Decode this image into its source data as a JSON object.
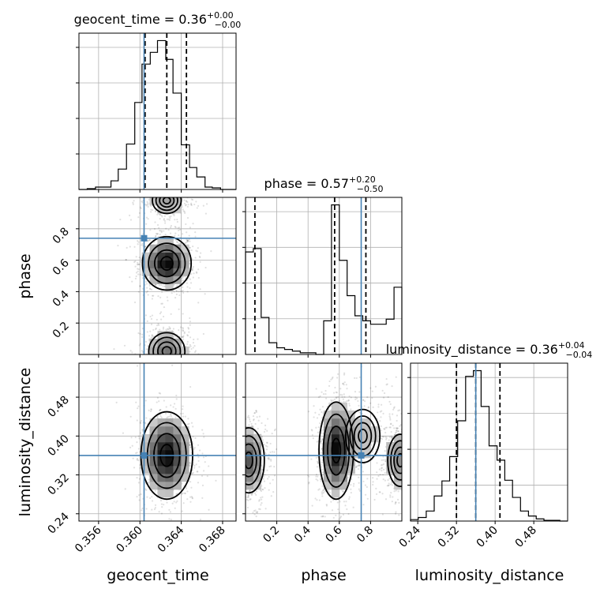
{
  "chart_data": {
    "type": "corner",
    "parameters": [
      "geocent_time",
      "phase",
      "luminosity_distance"
    ],
    "truth_color": "#4682b4",
    "truths": {
      "geocent_time": 0.3604,
      "phase": 0.74,
      "luminosity_distance": 0.36
    },
    "titles": {
      "geocent_time": {
        "name": "geocent_time",
        "value": "0.36",
        "plus": "+0.00",
        "minus": "−0.00"
      },
      "phase": {
        "name": "phase",
        "value": "0.57",
        "plus": "+0.20",
        "minus": "−0.50"
      },
      "luminosity_distance": {
        "name": "luminosity_distance",
        "value": "0.36",
        "plus": "+0.04",
        "minus": "−0.04"
      }
    },
    "axis_labels": {
      "geocent_time": "geocent_time",
      "phase": "phase",
      "luminosity_distance": "luminosity_distance"
    },
    "ranges": {
      "geocent_time": [
        0.3541,
        0.3693
      ],
      "phase": [
        0.0,
        1.0
      ],
      "luminosity_distance": [
        0.225,
        0.55
      ]
    },
    "ticks": {
      "geocent_time": {
        "values": [
          0.356,
          0.36,
          0.364,
          0.368
        ],
        "labels": [
          "0.356",
          "0.360",
          "0.364",
          "0.368"
        ]
      },
      "phase": {
        "values": [
          0.2,
          0.4,
          0.6,
          0.8
        ],
        "labels": [
          "0.2",
          "0.4",
          "0.6",
          "0.8"
        ]
      },
      "luminosity_distance": {
        "values": [
          0.24,
          0.32,
          0.4,
          0.48
        ],
        "labels": [
          "0.24",
          "0.32",
          "0.40",
          "0.48"
        ]
      }
    },
    "quantiles": {
      "geocent_time": [
        0.3605,
        0.3626,
        0.3645
      ],
      "phase": [
        0.06,
        0.57,
        0.77
      ],
      "luminosity_distance": [
        0.32,
        0.36,
        0.41
      ]
    },
    "histograms": {
      "geocent_time": {
        "edges": [
          0.3541,
          0.3549,
          0.3557,
          0.3564,
          0.3572,
          0.3579,
          0.3587,
          0.3595,
          0.3602,
          0.361,
          0.3617,
          0.3625,
          0.3632,
          0.364,
          0.3648,
          0.3655,
          0.3663,
          0.367,
          0.3678,
          0.3685,
          0.3693
        ],
        "counts": [
          0,
          1,
          3,
          3,
          11,
          26,
          58,
          111,
          160,
          175,
          190,
          166,
          123,
          57,
          28,
          16,
          3,
          2,
          0,
          0
        ]
      },
      "phase": {
        "edges": [
          0.0,
          0.05,
          0.1,
          0.15,
          0.2,
          0.25,
          0.3,
          0.35,
          0.4,
          0.45,
          0.5,
          0.55,
          0.6,
          0.65,
          0.7,
          0.75,
          0.8,
          0.85,
          0.9,
          0.95,
          1.0
        ],
        "counts": [
          61,
          63,
          22,
          7,
          4,
          3,
          2,
          1,
          1,
          0,
          20,
          89,
          56,
          35,
          23,
          20,
          18,
          18,
          21,
          40
        ]
      },
      "luminosity_distance": {
        "edges": [
          0.225,
          0.241,
          0.2575,
          0.274,
          0.29,
          0.306,
          0.3225,
          0.339,
          0.355,
          0.371,
          0.3875,
          0.404,
          0.42,
          0.436,
          0.4525,
          0.469,
          0.485,
          0.501,
          0.5175,
          0.534,
          0.55
        ],
        "counts": [
          2,
          5,
          14,
          35,
          56,
          90,
          140,
          202,
          210,
          160,
          105,
          85,
          57,
          33,
          14,
          7,
          3,
          1,
          1,
          0
        ]
      }
    },
    "modes_2d": {
      "phase_vs_geocent_time": [
        {
          "x": 0.3626,
          "y": 0.58,
          "sx": 0.00118,
          "sy": 0.085,
          "w": 1.0
        },
        {
          "x": 0.3626,
          "y": 0.02,
          "sx": 0.00118,
          "sy": 0.08,
          "w": 0.55
        },
        {
          "x": 0.3626,
          "y": 0.98,
          "sx": 0.00118,
          "sy": 0.07,
          "w": 0.35
        }
      ],
      "luminosity_distance_vs_geocent_time": [
        {
          "x": 0.3626,
          "y": 0.36,
          "sx": 0.00125,
          "sy": 0.045,
          "w": 1.0
        }
      ],
      "luminosity_distance_vs_phase": [
        {
          "x": 0.58,
          "y": 0.37,
          "sx": 0.055,
          "sy": 0.05,
          "w": 1.0
        },
        {
          "x": 0.02,
          "y": 0.35,
          "sx": 0.06,
          "sy": 0.04,
          "w": 0.7
        },
        {
          "x": 0.99,
          "y": 0.35,
          "sx": 0.06,
          "sy": 0.04,
          "w": 0.45
        },
        {
          "x": 0.75,
          "y": 0.4,
          "sx": 0.1,
          "sy": 0.05,
          "w": 0.25
        }
      ]
    }
  }
}
